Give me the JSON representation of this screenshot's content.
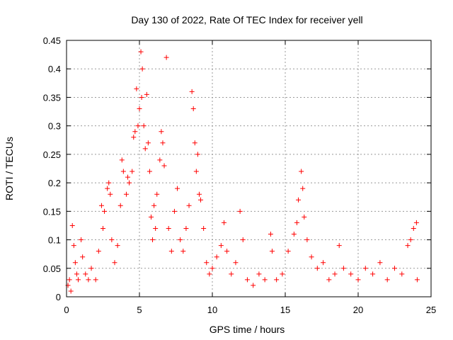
{
  "chart_data": {
    "type": "scatter",
    "title": "Day 130 of 2022, Rate Of TEC Index for receiver yell",
    "xlabel": "GPS time / hours",
    "ylabel": "ROTI / TECUs",
    "xlim": [
      0,
      25
    ],
    "ylim": [
      0,
      0.45
    ],
    "xticks": [
      "0",
      "5",
      "10",
      "15",
      "20",
      "25"
    ],
    "yticks": [
      "0",
      "0.05",
      "0.1",
      "0.15",
      "0.2",
      "0.25",
      "0.3",
      "0.35",
      "0.4",
      "0.45"
    ],
    "grid": true,
    "marker": "+",
    "series_color": "#ff0000",
    "points": [
      [
        0.1,
        0.02
      ],
      [
        0.2,
        0.03
      ],
      [
        0.3,
        0.01
      ],
      [
        0.4,
        0.125
      ],
      [
        0.5,
        0.09
      ],
      [
        0.6,
        0.06
      ],
      [
        0.7,
        0.04
      ],
      [
        0.8,
        0.03
      ],
      [
        1.0,
        0.1
      ],
      [
        1.1,
        0.07
      ],
      [
        1.3,
        0.04
      ],
      [
        1.5,
        0.03
      ],
      [
        1.7,
        0.05
      ],
      [
        2.0,
        0.03
      ],
      [
        2.2,
        0.08
      ],
      [
        2.4,
        0.16
      ],
      [
        2.5,
        0.12
      ],
      [
        2.6,
        0.15
      ],
      [
        2.8,
        0.19
      ],
      [
        2.9,
        0.2
      ],
      [
        3.0,
        0.18
      ],
      [
        3.1,
        0.1
      ],
      [
        3.3,
        0.06
      ],
      [
        3.5,
        0.09
      ],
      [
        3.7,
        0.16
      ],
      [
        3.8,
        0.24
      ],
      [
        3.9,
        0.22
      ],
      [
        4.1,
        0.18
      ],
      [
        4.2,
        0.21
      ],
      [
        4.3,
        0.2
      ],
      [
        4.5,
        0.22
      ],
      [
        4.6,
        0.28
      ],
      [
        4.7,
        0.29
      ],
      [
        4.8,
        0.365
      ],
      [
        4.9,
        0.3
      ],
      [
        5.0,
        0.33
      ],
      [
        5.1,
        0.43
      ],
      [
        5.15,
        0.35
      ],
      [
        5.2,
        0.4
      ],
      [
        5.3,
        0.3
      ],
      [
        5.4,
        0.26
      ],
      [
        5.5,
        0.355
      ],
      [
        5.6,
        0.27
      ],
      [
        5.7,
        0.22
      ],
      [
        5.8,
        0.14
      ],
      [
        5.9,
        0.1
      ],
      [
        6.0,
        0.16
      ],
      [
        6.1,
        0.12
      ],
      [
        6.2,
        0.18
      ],
      [
        6.4,
        0.24
      ],
      [
        6.5,
        0.29
      ],
      [
        6.6,
        0.27
      ],
      [
        6.7,
        0.23
      ],
      [
        6.85,
        0.42
      ],
      [
        7.0,
        0.12
      ],
      [
        7.2,
        0.08
      ],
      [
        7.4,
        0.15
      ],
      [
        7.6,
        0.19
      ],
      [
        7.8,
        0.1
      ],
      [
        8.0,
        0.08
      ],
      [
        8.2,
        0.12
      ],
      [
        8.4,
        0.16
      ],
      [
        8.6,
        0.36
      ],
      [
        8.7,
        0.33
      ],
      [
        8.8,
        0.27
      ],
      [
        8.9,
        0.22
      ],
      [
        9.0,
        0.25
      ],
      [
        9.1,
        0.18
      ],
      [
        9.2,
        0.17
      ],
      [
        9.4,
        0.12
      ],
      [
        9.6,
        0.06
      ],
      [
        9.8,
        0.04
      ],
      [
        10.0,
        0.05
      ],
      [
        10.3,
        0.07
      ],
      [
        10.6,
        0.09
      ],
      [
        10.8,
        0.13
      ],
      [
        11.0,
        0.08
      ],
      [
        11.3,
        0.04
      ],
      [
        11.6,
        0.06
      ],
      [
        11.9,
        0.15
      ],
      [
        12.1,
        0.1
      ],
      [
        12.4,
        0.03
      ],
      [
        12.8,
        0.02
      ],
      [
        13.2,
        0.04
      ],
      [
        13.6,
        0.03
      ],
      [
        14.0,
        0.11
      ],
      [
        14.1,
        0.08
      ],
      [
        14.4,
        0.03
      ],
      [
        14.8,
        0.04
      ],
      [
        15.2,
        0.08
      ],
      [
        15.6,
        0.11
      ],
      [
        15.8,
        0.13
      ],
      [
        15.9,
        0.17
      ],
      [
        16.1,
        0.22
      ],
      [
        16.2,
        0.19
      ],
      [
        16.3,
        0.14
      ],
      [
        16.5,
        0.1
      ],
      [
        16.8,
        0.07
      ],
      [
        17.2,
        0.05
      ],
      [
        17.6,
        0.06
      ],
      [
        18.0,
        0.03
      ],
      [
        18.4,
        0.04
      ],
      [
        18.7,
        0.09
      ],
      [
        19.0,
        0.05
      ],
      [
        19.5,
        0.04
      ],
      [
        20.0,
        0.03
      ],
      [
        20.5,
        0.05
      ],
      [
        21.0,
        0.04
      ],
      [
        21.5,
        0.06
      ],
      [
        22.0,
        0.03
      ],
      [
        22.5,
        0.05
      ],
      [
        23.0,
        0.04
      ],
      [
        23.4,
        0.09
      ],
      [
        23.6,
        0.1
      ],
      [
        23.8,
        0.12
      ],
      [
        24.0,
        0.13
      ],
      [
        24.05,
        0.03
      ]
    ]
  }
}
